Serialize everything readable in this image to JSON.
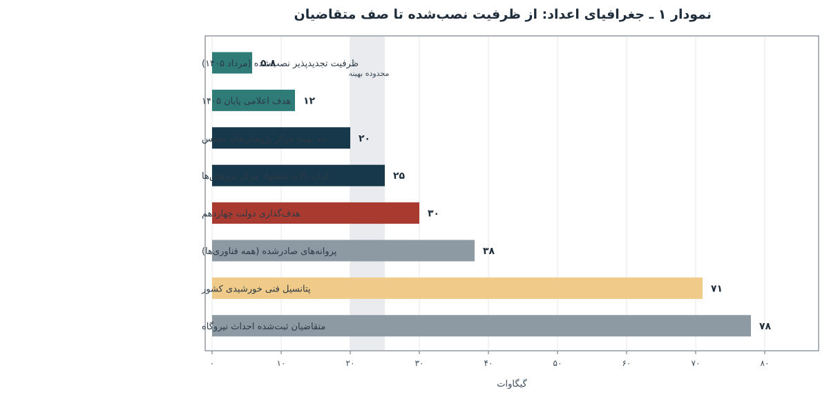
{
  "chart_data": {
    "type": "bar",
    "orientation": "horizontal",
    "title": "نمودار ۱ ـ جغرافیای اعداد: از ظرفیت نصب‌شده تا صف متقاضیان",
    "xlabel": "گیگاوات",
    "ylabel": "",
    "xlim": [
      0,
      87
    ],
    "xticks": [
      0,
      10,
      20,
      30,
      40,
      50,
      60,
      70,
      80
    ],
    "xtick_labels": [
      "۰",
      "۱۰",
      "۲۰",
      "۳۰",
      "۴۰",
      "۵۰",
      "۶۰",
      "۷۰",
      "۸۰"
    ],
    "grid": true,
    "shaded_band": {
      "from": 20,
      "to": 25,
      "label": "محدوده بهینه"
    },
    "categories": [
      "ظرفیت تجدیدپذیر نصب‌شده (مرداد ۱۴۰۵)",
      "هدف اعلامی پایان ۱۴۰۵",
      "حد بهینه مرکز پژوهش‌های مجلس",
      "کران بالای پیشنهاد مرکز پژوهش‌ها",
      "هدف‌گذاری دولت چهاردهم",
      "پروانه‌های صادرشده (همه فناوری‌ها)",
      "پتانسیل فنی خورشیدی کشور",
      "متقاضیان ثبت‌شده احداث نیروگاه"
    ],
    "values": [
      5.8,
      12,
      20,
      25,
      30,
      38,
      71,
      78
    ],
    "value_labels": [
      "۵.۸",
      "۱۲",
      "۲۰",
      "۲۵",
      "۳۰",
      "۳۸",
      "۷۱",
      "۷۸"
    ],
    "colors": [
      "#2e7b78",
      "#2e7b78",
      "#17374a",
      "#17374a",
      "#a83a30",
      "#8d9aa4",
      "#f0ca88",
      "#8d9aa4"
    ]
  }
}
